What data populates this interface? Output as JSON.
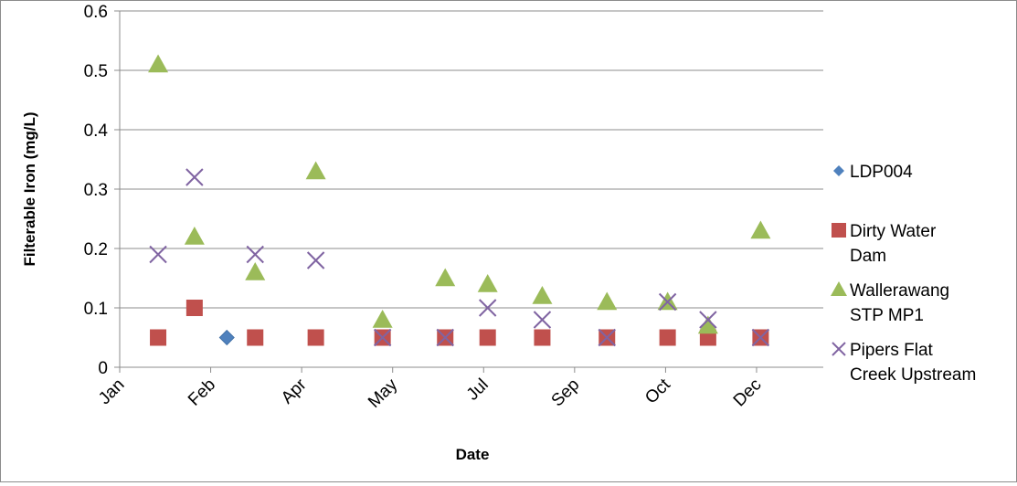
{
  "chart_data": {
    "type": "scatter",
    "title": "",
    "xlabel": "Date",
    "ylabel": "Filterable Iron (mg/L)",
    "ylim": [
      0,
      0.6
    ],
    "yticks": [
      "0",
      "0.1",
      "0.2",
      "0.3",
      "0.4",
      "0.5",
      "0.6"
    ],
    "xticks": [
      "Jan",
      "Feb",
      "Apr",
      "May",
      "Jul",
      "Sep",
      "Oct",
      "Dec"
    ],
    "xtick_dates": [
      "2011-01-01",
      "2011-02-15",
      "2011-04-01",
      "2011-05-16",
      "2011-06-30",
      "2011-08-14",
      "2011-09-28",
      "2011-11-12"
    ],
    "xlim": [
      "2011-01-01",
      "2011-12-15"
    ],
    "grid": "horizontal",
    "legend_position": "right",
    "series": [
      {
        "name": "LDP004",
        "marker": "diamond",
        "color": "#4f81bd",
        "points": [
          {
            "x": "2011-02-23",
            "y": 0.05
          }
        ]
      },
      {
        "name": "Dirty Water Dam",
        "marker": "square",
        "color": "#c0504d",
        "points": [
          {
            "x": "2011-01-20",
            "y": 0.05
          },
          {
            "x": "2011-02-07",
            "y": 0.1
          },
          {
            "x": "2011-03-09",
            "y": 0.05
          },
          {
            "x": "2011-04-08",
            "y": 0.05
          },
          {
            "x": "2011-05-11",
            "y": 0.05
          },
          {
            "x": "2011-06-11",
            "y": 0.05
          },
          {
            "x": "2011-07-02",
            "y": 0.05
          },
          {
            "x": "2011-07-29",
            "y": 0.05
          },
          {
            "x": "2011-08-30",
            "y": 0.05
          },
          {
            "x": "2011-09-29",
            "y": 0.05
          },
          {
            "x": "2011-10-19",
            "y": 0.05
          },
          {
            "x": "2011-11-14",
            "y": 0.05
          }
        ]
      },
      {
        "name": "Wallerawang STP MP1",
        "marker": "triangle",
        "color": "#9bbb59",
        "points": [
          {
            "x": "2011-01-20",
            "y": 0.51
          },
          {
            "x": "2011-02-07",
            "y": 0.22
          },
          {
            "x": "2011-03-09",
            "y": 0.16
          },
          {
            "x": "2011-04-08",
            "y": 0.33
          },
          {
            "x": "2011-05-11",
            "y": 0.08
          },
          {
            "x": "2011-06-11",
            "y": 0.15
          },
          {
            "x": "2011-07-02",
            "y": 0.14
          },
          {
            "x": "2011-07-29",
            "y": 0.12
          },
          {
            "x": "2011-08-30",
            "y": 0.11
          },
          {
            "x": "2011-09-29",
            "y": 0.11
          },
          {
            "x": "2011-10-19",
            "y": 0.07
          },
          {
            "x": "2011-11-14",
            "y": 0.23
          }
        ]
      },
      {
        "name": "Pipers Flat Creek Upstream",
        "marker": "x",
        "color": "#8064a2",
        "points": [
          {
            "x": "2011-01-20",
            "y": 0.19
          },
          {
            "x": "2011-02-07",
            "y": 0.32
          },
          {
            "x": "2011-03-09",
            "y": 0.19
          },
          {
            "x": "2011-04-08",
            "y": 0.18
          },
          {
            "x": "2011-05-11",
            "y": 0.05
          },
          {
            "x": "2011-06-11",
            "y": 0.05
          },
          {
            "x": "2011-07-02",
            "y": 0.1
          },
          {
            "x": "2011-07-29",
            "y": 0.08
          },
          {
            "x": "2011-08-30",
            "y": 0.05
          },
          {
            "x": "2011-09-29",
            "y": 0.11
          },
          {
            "x": "2011-10-19",
            "y": 0.08
          },
          {
            "x": "2011-11-14",
            "y": 0.05
          }
        ]
      }
    ],
    "legend_lines": [
      [
        "LDP004"
      ],
      [
        "Dirty Water",
        "Dam"
      ],
      [
        "Wallerawang",
        "STP MP1"
      ],
      [
        "Pipers Flat",
        "Creek Upstream"
      ]
    ]
  }
}
